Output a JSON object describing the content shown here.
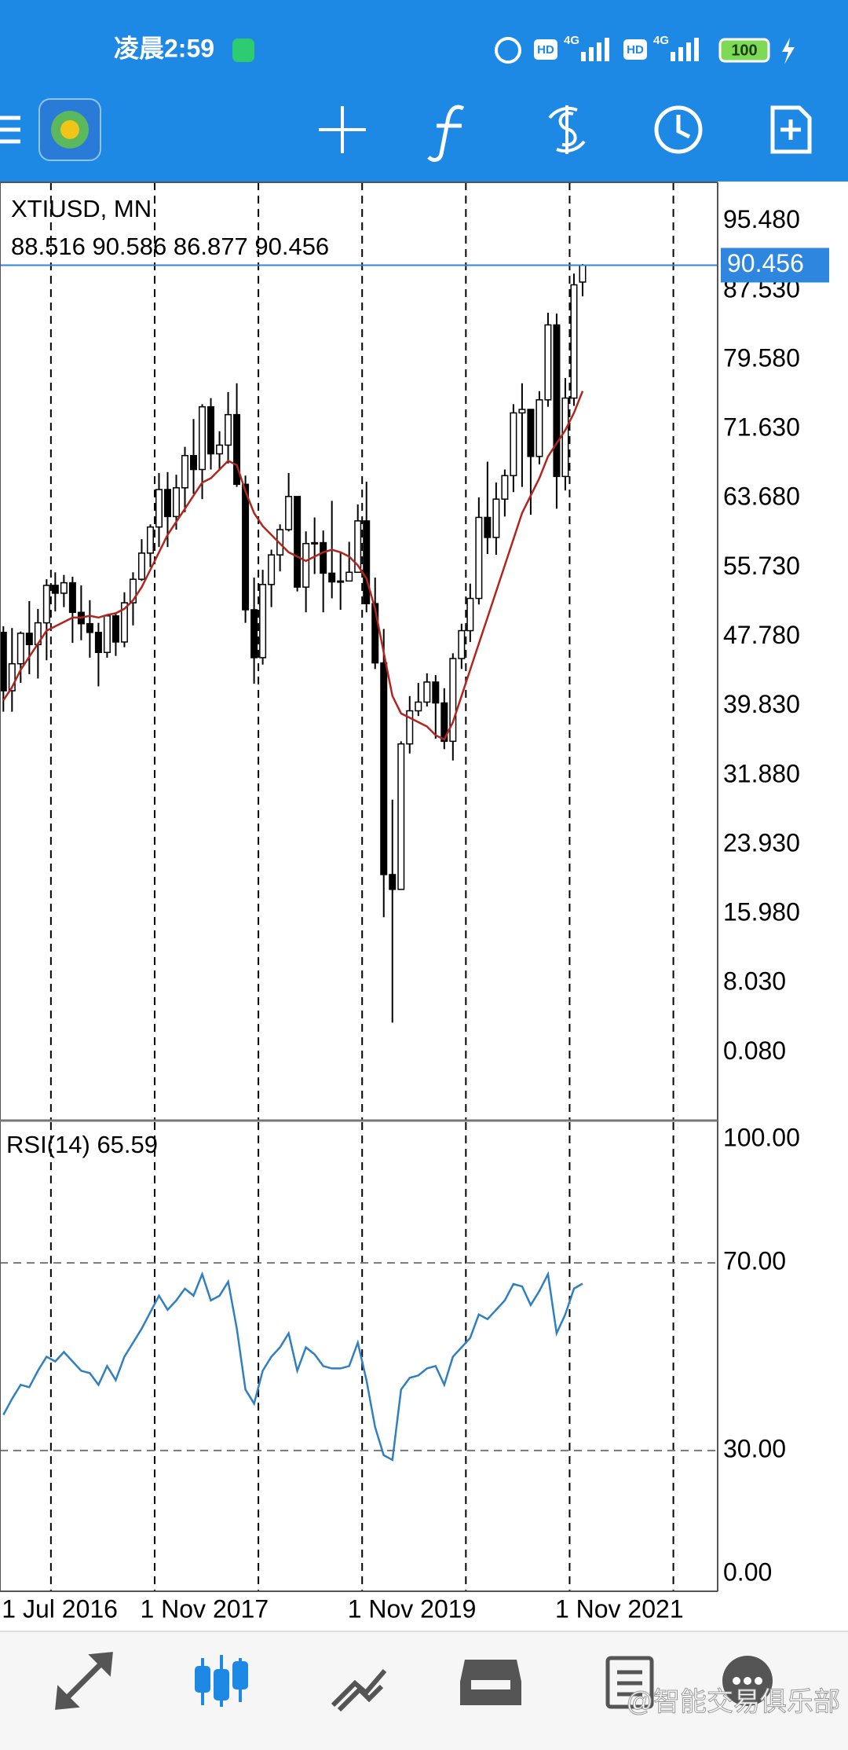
{
  "status_bar": {
    "time": "凌晨2:59",
    "network": [
      "HD",
      "4G",
      "HD",
      "4G"
    ],
    "battery": "100"
  },
  "watermark": "@智能交易俱乐部",
  "chart_data": [
    {
      "type": "candlestick",
      "title": "XTIUSD, MN",
      "categories": [
        "1 Jul 2016",
        null,
        null,
        null,
        null,
        null,
        null,
        null,
        null,
        null,
        null,
        null,
        null,
        null,
        null,
        null,
        "1 Nov 2017",
        null,
        null,
        null,
        null,
        null,
        null,
        null,
        null,
        null,
        null,
        null,
        null,
        null,
        null,
        null,
        null,
        null,
        null,
        null,
        null,
        null,
        null,
        null,
        "1 Nov 2019",
        null,
        null,
        null,
        null,
        null,
        null,
        null,
        null,
        null,
        null,
        null,
        null,
        null,
        null,
        null,
        null,
        null,
        null,
        null,
        null,
        null,
        null,
        null,
        "1 Nov 2021",
        null,
        null,
        null
      ],
      "open": [
        48.3,
        41.6,
        44.7,
        48.2,
        46.9,
        49.4,
        53.7,
        52.8,
        54.0,
        50.6,
        49.3,
        48.3,
        46.0,
        50.2,
        47.2,
        51.7,
        54.4,
        57.4,
        60.4,
        64.7,
        61.6,
        64.9,
        68.6,
        67.0,
        74.2,
        68.8,
        69.8,
        73.3,
        65.3,
        50.9,
        45.4,
        53.8,
        57.2,
        60.1,
        63.9,
        53.5,
        58.5,
        58.6,
        55.1,
        54.1,
        54.2,
        55.2,
        61.1,
        51.6,
        44.8,
        20.5,
        18.8,
        35.5,
        39.3,
        40.3,
        42.6,
        40.2,
        35.8,
        45.3,
        48.5,
        52.2,
        61.5,
        59.2,
        63.6,
        66.3,
        73.5,
        73.9,
        68.5,
        75.0,
        83.6,
        66.2,
        75.2,
        88.516
      ],
      "high": [
        49.0,
        48.8,
        48.4,
        51.9,
        51.0,
        54.4,
        55.2,
        54.9,
        54.7,
        53.7,
        52.0,
        49.4,
        50.4,
        50.6,
        52.9,
        55.2,
        59.0,
        60.7,
        66.6,
        66.7,
        66.4,
        69.6,
        72.8,
        74.5,
        75.2,
        71.4,
        75.9,
        76.9,
        66.3,
        54.6,
        55.5,
        57.8,
        60.7,
        66.6,
        63.8,
        59.9,
        61.5,
        60.0,
        63.4,
        57.5,
        58.7,
        63.0,
        65.6,
        54.6,
        48.7,
        29.1,
        35.8,
        41.0,
        42.5,
        43.6,
        43.4,
        41.9,
        45.9,
        49.3,
        53.9,
        63.8,
        67.9,
        65.5,
        67.0,
        74.5,
        76.9,
        73.9,
        76.0,
        85.0,
        84.9,
        77.5,
        89.5,
        90.586
      ],
      "low": [
        39.2,
        39.2,
        42.5,
        43.5,
        43.0,
        45.1,
        50.7,
        51.2,
        47.1,
        47.4,
        45.4,
        42.1,
        45.4,
        45.6,
        46.6,
        49.1,
        54.2,
        55.8,
        58.1,
        58.1,
        60.1,
        62.1,
        64.2,
        63.6,
        67.0,
        66.9,
        67.7,
        65.0,
        49.4,
        42.4,
        44.6,
        51.2,
        55.3,
        59.9,
        53.0,
        50.6,
        55.0,
        50.6,
        52.2,
        50.9,
        54.8,
        55.3,
        50.6,
        44.1,
        15.6,
        3.5,
        18.9,
        34.4,
        38.7,
        39.8,
        36.1,
        34.9,
        33.6,
        44.1,
        47.2,
        51.5,
        57.3,
        57.2,
        61.6,
        64.4,
        65.0,
        61.8,
        67.6,
        74.2,
        62.5,
        64.6,
        74.3,
        86.877
      ],
      "close": [
        41.6,
        44.7,
        48.2,
        46.9,
        49.4,
        53.7,
        52.8,
        54.0,
        50.6,
        49.3,
        48.3,
        46.0,
        50.2,
        47.2,
        51.7,
        54.4,
        57.4,
        60.4,
        64.7,
        61.6,
        64.9,
        68.6,
        67.0,
        74.2,
        68.8,
        69.8,
        73.3,
        65.3,
        50.9,
        45.4,
        53.8,
        57.2,
        60.1,
        63.9,
        53.5,
        58.5,
        58.6,
        55.1,
        54.1,
        54.2,
        55.2,
        61.1,
        51.6,
        44.8,
        20.5,
        18.8,
        35.5,
        39.3,
        40.3,
        42.6,
        40.2,
        35.8,
        45.3,
        48.5,
        52.2,
        61.5,
        59.2,
        63.6,
        66.3,
        73.5,
        73.9,
        68.5,
        75.0,
        83.6,
        66.2,
        75.2,
        88.2,
        90.456
      ],
      "up_color": "#ffffff",
      "down_color": "#000000",
      "wick_color": "#000000",
      "price_line_color": "#2f86de",
      "ma": {
        "color": "#b0261e",
        "values": [
          40.5,
          42,
          44,
          45.5,
          47,
          48.5,
          49,
          49.5,
          50,
          50,
          50.2,
          50,
          50.3,
          50.5,
          51,
          52,
          53.5,
          55.5,
          57.5,
          59.5,
          61,
          62.5,
          64,
          65.5,
          66,
          67,
          68,
          67.5,
          64.5,
          62,
          60.5,
          59.5,
          58.5,
          57.5,
          57,
          56.5,
          57,
          57.5,
          57.8,
          57.5,
          57,
          56,
          54.5,
          51,
          46,
          41,
          39,
          38.5,
          38,
          37.5,
          36.5,
          36,
          38,
          41,
          44,
          47,
          50,
          53,
          56,
          59,
          62,
          64,
          66,
          68.5,
          70,
          71.5,
          73.5,
          76
        ]
      },
      "ylim": [
        -7.74,
        99.97
      ],
      "yticks": [
        {
          "value": 95.48,
          "label": "95.480"
        },
        {
          "value": 87.53,
          "label": "87.530"
        },
        {
          "value": 79.58,
          "label": "79.580"
        },
        {
          "value": 71.63,
          "label": "71.630"
        },
        {
          "value": 63.68,
          "label": "63.680"
        },
        {
          "value": 55.73,
          "label": "55.730"
        },
        {
          "value": 47.78,
          "label": "47.780"
        },
        {
          "value": 39.83,
          "label": "39.830"
        },
        {
          "value": 31.88,
          "label": "31.880"
        },
        {
          "value": 23.93,
          "label": "23.930"
        },
        {
          "value": 15.98,
          "label": "15.980"
        },
        {
          "value": 8.03,
          "label": "8.030"
        },
        {
          "value": 0.08,
          "label": "0.080"
        }
      ]
    },
    {
      "type": "line",
      "title": "RSI(14)",
      "color": "#2f7fc1",
      "values": [
        37.6,
        41,
        44,
        43.5,
        47,
        50,
        49,
        51,
        49,
        47,
        46.5,
        44,
        48,
        45,
        50,
        53,
        56,
        59.5,
        63,
        60,
        62,
        64.5,
        63,
        67.6,
        62,
        63,
        66,
        56,
        43,
        40,
        47,
        50,
        52,
        55,
        47,
        52,
        50.5,
        48,
        47.5,
        47.5,
        48,
        53,
        45,
        35,
        29,
        28,
        43,
        45.5,
        46,
        47.5,
        48,
        44,
        50,
        52,
        54,
        59,
        58,
        60,
        62,
        65.5,
        65,
        61,
        64,
        67.6,
        55,
        59,
        64.5,
        65.59
      ],
      "ylim": [
        0,
        100
      ],
      "yticks": [
        {
          "value": 100,
          "label": "100.00"
        },
        {
          "value": 70,
          "label": "70.00"
        },
        {
          "value": 30,
          "label": "30.00"
        },
        {
          "value": 0,
          "label": "0.00"
        }
      ],
      "levels": [
        70,
        30
      ]
    }
  ]
}
